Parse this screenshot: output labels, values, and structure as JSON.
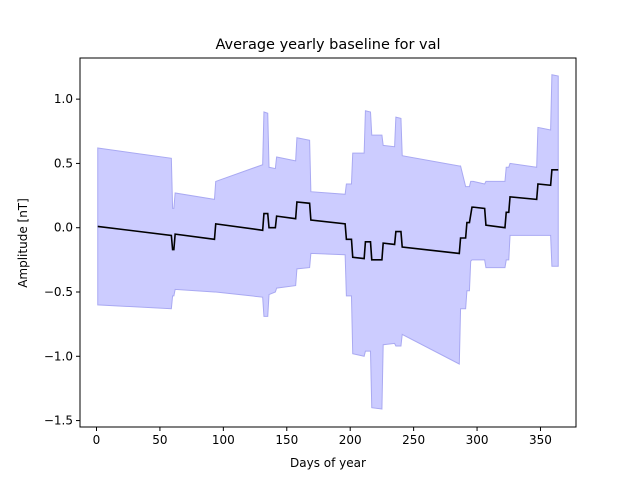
{
  "chart_data": {
    "type": "line",
    "title": "Average yearly baseline for val",
    "xlabel": "Days of year",
    "ylabel": "Amplitude [nT]",
    "xlim": [
      -13,
      378
    ],
    "ylim": [
      -1.55,
      1.32
    ],
    "xticks": [
      0,
      50,
      100,
      150,
      200,
      250,
      300,
      350
    ],
    "yticks": [
      -1.5,
      -1.0,
      -0.5,
      0.0,
      0.5,
      1.0
    ],
    "ytick_labels": [
      "−1.5",
      "−1.0",
      "−0.5",
      "0.0",
      "0.5",
      "1.0"
    ],
    "grid": false,
    "legend": "none",
    "colors": {
      "line": "#000000",
      "band_fill": "#ccccff",
      "band_edge": "#a9a9f2"
    },
    "series": [
      {
        "x": [
          1,
          59,
          60,
          61,
          62,
          93,
          94,
          131,
          132,
          135,
          136,
          141,
          142,
          157,
          158,
          168,
          169,
          196,
          197,
          201,
          202,
          211,
          212,
          216,
          217,
          225,
          226,
          235,
          236,
          240,
          241,
          286,
          287,
          291,
          292,
          294,
          295,
          296,
          297,
          306,
          307,
          322,
          323,
          325,
          326,
          347,
          348,
          358,
          359,
          364
        ],
        "y": [
          0.01,
          -0.06,
          -0.17,
          -0.17,
          -0.05,
          -0.09,
          0.03,
          -0.02,
          0.11,
          0.11,
          0.0,
          0.0,
          0.09,
          0.07,
          0.2,
          0.19,
          0.06,
          0.03,
          -0.09,
          -0.09,
          -0.23,
          -0.24,
          -0.11,
          -0.11,
          -0.25,
          -0.25,
          -0.12,
          -0.13,
          -0.03,
          -0.03,
          -0.15,
          -0.2,
          -0.08,
          -0.08,
          0.04,
          0.04,
          0.1,
          0.16,
          0.16,
          0.15,
          0.02,
          0.0,
          0.12,
          0.12,
          0.24,
          0.22,
          0.34,
          0.33,
          0.45,
          0.45
        ]
      }
    ],
    "band": {
      "x": [
        1,
        59,
        60,
        61,
        62,
        93,
        94,
        131,
        132,
        135,
        136,
        141,
        142,
        157,
        158,
        168,
        169,
        196,
        197,
        201,
        202,
        211,
        212,
        216,
        217,
        225,
        226,
        235,
        236,
        240,
        241,
        286,
        287,
        291,
        292,
        294,
        295,
        296,
        297,
        306,
        307,
        322,
        323,
        325,
        326,
        347,
        348,
        358,
        359,
        364
      ],
      "upper": [
        0.62,
        0.54,
        0.15,
        0.15,
        0.27,
        0.22,
        0.36,
        0.49,
        0.9,
        0.89,
        0.47,
        0.46,
        0.55,
        0.52,
        0.7,
        0.68,
        0.28,
        0.26,
        0.34,
        0.34,
        0.58,
        0.58,
        0.91,
        0.9,
        0.72,
        0.72,
        0.64,
        0.63,
        0.86,
        0.85,
        0.56,
        0.48,
        0.48,
        0.32,
        0.32,
        0.32,
        0.36,
        0.36,
        0.36,
        0.34,
        0.36,
        0.36,
        0.47,
        0.47,
        0.5,
        0.47,
        0.78,
        0.76,
        1.19,
        1.18
      ],
      "lower": [
        -0.6,
        -0.63,
        -0.53,
        -0.53,
        -0.48,
        -0.5,
        -0.5,
        -0.54,
        -0.69,
        -0.69,
        -0.52,
        -0.5,
        -0.47,
        -0.45,
        -0.32,
        -0.31,
        -0.2,
        -0.21,
        -0.53,
        -0.53,
        -0.98,
        -1.0,
        -0.96,
        -0.96,
        -1.4,
        -1.41,
        -0.91,
        -0.9,
        -0.92,
        -0.92,
        -0.83,
        -1.06,
        -0.63,
        -0.63,
        -0.49,
        -0.49,
        -0.26,
        -0.25,
        -0.25,
        -0.25,
        -0.31,
        -0.31,
        -0.25,
        -0.25,
        -0.06,
        -0.06,
        -0.06,
        -0.06,
        -0.3,
        -0.3
      ]
    }
  }
}
